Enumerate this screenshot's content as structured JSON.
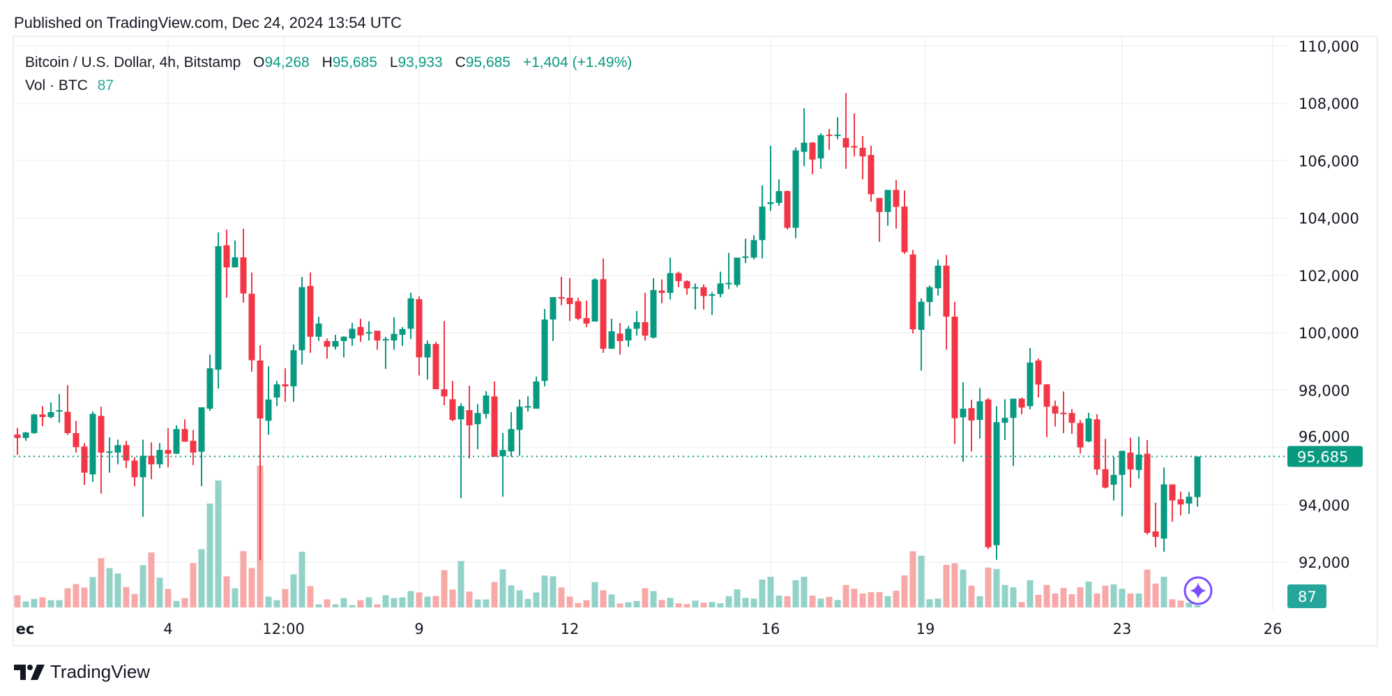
{
  "published": "Published on TradingView.com, Dec 24, 2024 13:54 UTC",
  "legend": {
    "symbol": "Bitcoin / U.S. Dollar, 4h, Bitstamp",
    "o_label": "O",
    "o": "94,268",
    "h_label": "H",
    "h": "95,685",
    "l_label": "L",
    "l": "93,933",
    "c_label": "C",
    "c": "95,685",
    "change": "+1,404 (+1.49%)",
    "vol_label": "Vol · BTC",
    "vol": "87"
  },
  "footer": {
    "brand": "TradingView"
  },
  "colors": {
    "up": "#089981",
    "down": "#f23645",
    "up_vol": "#92d2c9",
    "down_vol": "#f7a9a8",
    "vol_badge": "#26a69a",
    "grid": "#f0f1f3"
  },
  "chart_data": {
    "type": "candlestick",
    "title": "Bitcoin / U.S. Dollar, 4h, Bitstamp",
    "interval": "4h",
    "ylim": [
      91000,
      110500
    ],
    "y_ticks": [
      "110,000",
      "108,000",
      "106,000",
      "104,000",
      "102,000",
      "100,000",
      "98,000",
      "96,000",
      "94,000",
      "92,000"
    ],
    "y_tick_values": [
      110000,
      108000,
      106000,
      104000,
      102000,
      100000,
      98000,
      96000,
      94000,
      92000
    ],
    "x_ticks": [
      "ec",
      "4",
      "12:00",
      "9",
      "12",
      "16",
      "19",
      "23",
      "26"
    ],
    "grid": true,
    "last_price": 95685,
    "last_price_label": "95,685",
    "last_volume_label": "87",
    "columns": [
      "open",
      "high",
      "low",
      "close",
      "volume"
    ],
    "candles": [
      [
        96450,
        96680,
        95740,
        96330,
        517
      ],
      [
        96330,
        96540,
        96230,
        96520,
        253
      ],
      [
        96500,
        97170,
        96470,
        97150,
        363
      ],
      [
        97150,
        97440,
        96740,
        97060,
        429
      ],
      [
        97060,
        97570,
        97010,
        97230,
        308
      ],
      [
        97250,
        97860,
        96860,
        97300,
        308
      ],
      [
        97240,
        98170,
        96440,
        96500,
        814
      ],
      [
        96500,
        96930,
        95820,
        96010,
        990
      ],
      [
        96030,
        96150,
        94690,
        95120,
        847
      ],
      [
        95060,
        97250,
        94800,
        97170,
        1287
      ],
      [
        97100,
        97420,
        94390,
        95820,
        2090
      ],
      [
        95820,
        96350,
        95120,
        95860,
        1672
      ],
      [
        95820,
        96270,
        95410,
        96080,
        1441
      ],
      [
        96080,
        96230,
        95280,
        95540,
        869
      ],
      [
        95540,
        95660,
        94650,
        94960,
        572
      ],
      [
        94960,
        96270,
        93580,
        95710,
        1793
      ],
      [
        95710,
        96180,
        94890,
        95410,
        2332
      ],
      [
        95410,
        96150,
        95280,
        95910,
        1265
      ],
      [
        95910,
        96670,
        95310,
        95780,
        781
      ],
      [
        95780,
        96770,
        95770,
        96640,
        275
      ],
      [
        96640,
        96980,
        96200,
        96200,
        396
      ],
      [
        96230,
        96610,
        95380,
        95820,
        1881
      ],
      [
        95850,
        97400,
        94650,
        97400,
        2475
      ],
      [
        97350,
        99240,
        97280,
        98760,
        4411
      ],
      [
        98710,
        103500,
        98050,
        103020,
        5390
      ],
      [
        103050,
        103600,
        101220,
        102280,
        1320
      ],
      [
        102280,
        103220,
        102280,
        102630,
        814
      ],
      [
        102630,
        103630,
        101050,
        101370,
        2387
      ],
      [
        101360,
        102100,
        98640,
        99040,
        1672
      ],
      [
        99030,
        99560,
        92070,
        97010,
        6017
      ],
      [
        96930,
        98830,
        96440,
        97670,
        462
      ],
      [
        97740,
        98320,
        97440,
        98200,
        308
      ],
      [
        98200,
        98760,
        97590,
        98130,
        781
      ],
      [
        98130,
        99590,
        97590,
        99390,
        1408
      ],
      [
        99390,
        101950,
        98890,
        101590,
        2365
      ],
      [
        101630,
        102100,
        99300,
        99860,
        902
      ],
      [
        99860,
        100560,
        99710,
        100320,
        132
      ],
      [
        99710,
        99800,
        99100,
        99510,
        341
      ],
      [
        99510,
        99930,
        99410,
        99710,
        132
      ],
      [
        99710,
        99880,
        99140,
        99860,
        396
      ],
      [
        99800,
        100340,
        99540,
        100140,
        99
      ],
      [
        100200,
        100490,
        99680,
        99910,
        308
      ],
      [
        99980,
        100400,
        99730,
        100020,
        429
      ],
      [
        100070,
        100070,
        99410,
        99730,
        132
      ],
      [
        99760,
        99860,
        98740,
        99780,
        517
      ],
      [
        99730,
        100540,
        99410,
        99960,
        396
      ],
      [
        99930,
        100200,
        99540,
        100130,
        429
      ],
      [
        100140,
        101390,
        99780,
        101200,
        693
      ],
      [
        101170,
        101270,
        98510,
        99140,
        638
      ],
      [
        99140,
        99730,
        98370,
        99610,
        462
      ],
      [
        99610,
        99680,
        98030,
        98030,
        484
      ],
      [
        98030,
        100410,
        97470,
        97780,
        1584
      ],
      [
        97680,
        98320,
        96910,
        96960,
        759
      ],
      [
        96980,
        97540,
        94230,
        97440,
        1969
      ],
      [
        97300,
        98150,
        95620,
        96770,
        671
      ],
      [
        96810,
        97510,
        95940,
        97200,
        341
      ],
      [
        97170,
        97960,
        97010,
        97810,
        341
      ],
      [
        97780,
        98300,
        95670,
        95670,
        1078
      ],
      [
        95690,
        96500,
        94280,
        95910,
        1617
      ],
      [
        95860,
        97230,
        95670,
        96640,
        935
      ],
      [
        96610,
        97670,
        95710,
        97420,
        726
      ],
      [
        97400,
        97780,
        97250,
        97440,
        363
      ],
      [
        97350,
        98470,
        97350,
        98300,
        638
      ],
      [
        98320,
        100830,
        98130,
        100460,
        1353
      ],
      [
        100460,
        101240,
        99710,
        101240,
        1320
      ],
      [
        101240,
        101950,
        100960,
        101190,
        847
      ],
      [
        101220,
        101900,
        100410,
        101000,
        462
      ],
      [
        101100,
        101220,
        100440,
        100490,
        187
      ],
      [
        100510,
        101120,
        100200,
        100320,
        308
      ],
      [
        100390,
        101900,
        100390,
        101860,
        1078
      ],
      [
        101870,
        102590,
        99300,
        99440,
        726
      ],
      [
        99440,
        100490,
        99440,
        100050,
        550
      ],
      [
        99970,
        100340,
        99240,
        99710,
        165
      ],
      [
        99730,
        100240,
        99510,
        100140,
        220
      ],
      [
        100140,
        100760,
        99900,
        100370,
        275
      ],
      [
        100370,
        101390,
        99730,
        99900,
        814
      ],
      [
        99830,
        101900,
        99800,
        101490,
        693
      ],
      [
        101470,
        101860,
        101030,
        101390,
        318
      ],
      [
        101390,
        102620,
        101160,
        102080,
        405
      ],
      [
        102080,
        102130,
        101590,
        101800,
        173
      ],
      [
        101800,
        101830,
        101330,
        101550,
        145
      ],
      [
        101540,
        101720,
        100810,
        101590,
        289
      ],
      [
        101590,
        101690,
        100810,
        101280,
        202
      ],
      [
        101290,
        101420,
        100620,
        101340,
        231
      ],
      [
        101350,
        102130,
        101240,
        101720,
        173
      ],
      [
        101700,
        102790,
        101520,
        101740,
        477
      ],
      [
        101670,
        102620,
        101590,
        102620,
        766
      ],
      [
        102620,
        103280,
        102430,
        102660,
        405
      ],
      [
        102620,
        103400,
        102560,
        103230,
        376
      ],
      [
        103230,
        105140,
        102590,
        104400,
        1185
      ],
      [
        104490,
        106520,
        104250,
        104550,
        1301
      ],
      [
        104530,
        105350,
        104430,
        104940,
        506
      ],
      [
        104940,
        104960,
        103600,
        103660,
        477
      ],
      [
        103660,
        106460,
        103300,
        106360,
        1156
      ],
      [
        106310,
        107830,
        105810,
        106630,
        1301
      ],
      [
        106630,
        106650,
        105530,
        106040,
        506
      ],
      [
        106080,
        106960,
        105720,
        106890,
        376
      ],
      [
        106910,
        107110,
        106380,
        106880,
        448
      ],
      [
        106880,
        107520,
        106750,
        106910,
        318
      ],
      [
        106790,
        108360,
        105720,
        106460,
        954
      ],
      [
        106510,
        107650,
        106150,
        106460,
        795
      ],
      [
        106450,
        106860,
        105350,
        106150,
        592
      ],
      [
        106200,
        106520,
        104570,
        104830,
        650
      ],
      [
        104700,
        104700,
        103170,
        104210,
        650
      ],
      [
        104210,
        104980,
        103730,
        104980,
        477
      ],
      [
        104980,
        105330,
        103630,
        104390,
        708
      ],
      [
        104400,
        104960,
        102750,
        102810,
        1358
      ],
      [
        102730,
        102890,
        99970,
        100120,
        2384
      ],
      [
        100100,
        101200,
        98680,
        101080,
        2196
      ],
      [
        101070,
        101650,
        100580,
        101590,
        347
      ],
      [
        101550,
        102550,
        101300,
        102340,
        376
      ],
      [
        102340,
        102710,
        99410,
        100560,
        1806
      ],
      [
        100560,
        101080,
        96120,
        97020,
        1879
      ],
      [
        97050,
        98270,
        95500,
        97350,
        1604
      ],
      [
        97370,
        97660,
        95860,
        96940,
        925
      ],
      [
        96960,
        98070,
        96310,
        97610,
        477
      ],
      [
        97670,
        97720,
        92450,
        92520,
        1691
      ],
      [
        92590,
        97440,
        92080,
        96880,
        1633
      ],
      [
        96860,
        97680,
        96260,
        97030,
        954
      ],
      [
        97030,
        97700,
        95350,
        97700,
        853
      ],
      [
        97700,
        97740,
        97150,
        97390,
        231
      ],
      [
        97440,
        99470,
        97330,
        98960,
        1156
      ],
      [
        99030,
        99100,
        97740,
        98190,
        535
      ],
      [
        98200,
        98200,
        96360,
        97420,
        954
      ],
      [
        97440,
        97630,
        96730,
        97180,
        592
      ],
      [
        97210,
        97950,
        96500,
        97160,
        824
      ],
      [
        97200,
        97340,
        96470,
        96860,
        564
      ],
      [
        96850,
        96950,
        95790,
        96000,
        853
      ],
      [
        96210,
        97210,
        96180,
        97010,
        1098
      ],
      [
        96980,
        97160,
        95040,
        95230,
        592
      ],
      [
        95240,
        96300,
        94570,
        94600,
        925
      ],
      [
        94700,
        95670,
        94150,
        95040,
        983
      ],
      [
        95040,
        95880,
        93600,
        95880,
        795
      ],
      [
        95820,
        96340,
        94600,
        95230,
        592
      ],
      [
        95210,
        96370,
        94910,
        95750,
        592
      ],
      [
        95780,
        96260,
        92960,
        93020,
        1604
      ],
      [
        93070,
        94070,
        92520,
        92880,
        1011
      ],
      [
        92820,
        95300,
        92360,
        94710,
        1301
      ],
      [
        94710,
        94710,
        93410,
        94150,
        347
      ],
      [
        94190,
        94460,
        93630,
        94010,
        289
      ],
      [
        94040,
        94440,
        93680,
        94281,
        202
      ],
      [
        94268,
        95685,
        93933,
        95685,
        87
      ]
    ]
  }
}
